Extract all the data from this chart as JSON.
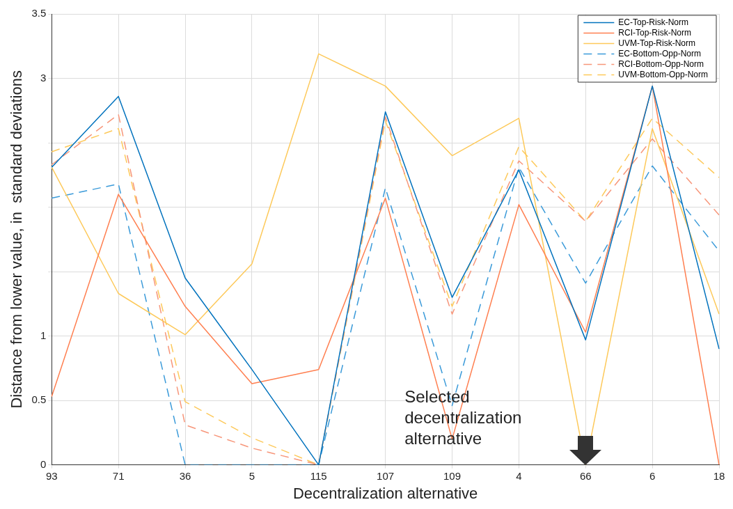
{
  "chart_data": {
    "type": "line",
    "xlabel": "Decentralization alternative",
    "ylabel": "Distance from lower value, in  standard deviations",
    "categories": [
      "93",
      "71",
      "36",
      "5",
      "115",
      "107",
      "109",
      "4",
      "66",
      "6",
      "18"
    ],
    "series": [
      {
        "name": "EC-Top-Risk-Norm",
        "color": "#0072bd",
        "line_style": "solid",
        "values": [
          2.31,
          2.86,
          1.45,
          0.74,
          0,
          2.74,
          1.3,
          2.29,
          0.97,
          2.94,
          0.9
        ]
      },
      {
        "name": "RCI-Top-Risk-Norm",
        "color": "#ff7f50",
        "line_style": "solid",
        "values": [
          0.53,
          2.1,
          1.23,
          0.63,
          0.74,
          2.07,
          0.2,
          2.02,
          1.03,
          2.94,
          0
        ]
      },
      {
        "name": "UVM-Top-Risk-Norm",
        "color": "#fdc95a",
        "line_style": "solid",
        "values": [
          2.31,
          1.33,
          1.01,
          1.56,
          3.19,
          2.94,
          2.4,
          2.69,
          0,
          2.61,
          1.17
        ]
      },
      {
        "name": "EC-Bottom-Opp-Norm",
        "color": "#3a9ad9",
        "line_style": "dashed",
        "values": [
          2.07,
          2.18,
          0,
          0,
          0,
          2.15,
          0.46,
          2.31,
          1.41,
          2.32,
          1.66
        ]
      },
      {
        "name": "RCI-Bottom-Opp-Norm",
        "color": "#f7967a",
        "line_style": "dashed",
        "values": [
          2.33,
          2.72,
          0.31,
          0.13,
          0,
          2.7,
          1.17,
          2.36,
          1.89,
          2.53,
          1.94
        ]
      },
      {
        "name": "UVM-Bottom-Opp-Norm",
        "color": "#fdc95a",
        "line_style": "dashed",
        "values": [
          2.43,
          2.61,
          0.49,
          0.21,
          0,
          2.67,
          1.23,
          2.47,
          1.89,
          2.69,
          2.23
        ]
      }
    ],
    "ylim": [
      0,
      3.5
    ],
    "yticks": [
      0,
      0.5,
      1,
      {
        "value": 1.5,
        "label": null
      },
      {
        "value": 2,
        "label": null
      },
      {
        "value": 2.5,
        "label": null
      },
      3,
      3.5
    ],
    "grid": true,
    "legend": "top right",
    "marker": "none",
    "annotations": [
      "Selected decentralization alternative"
    ]
  }
}
